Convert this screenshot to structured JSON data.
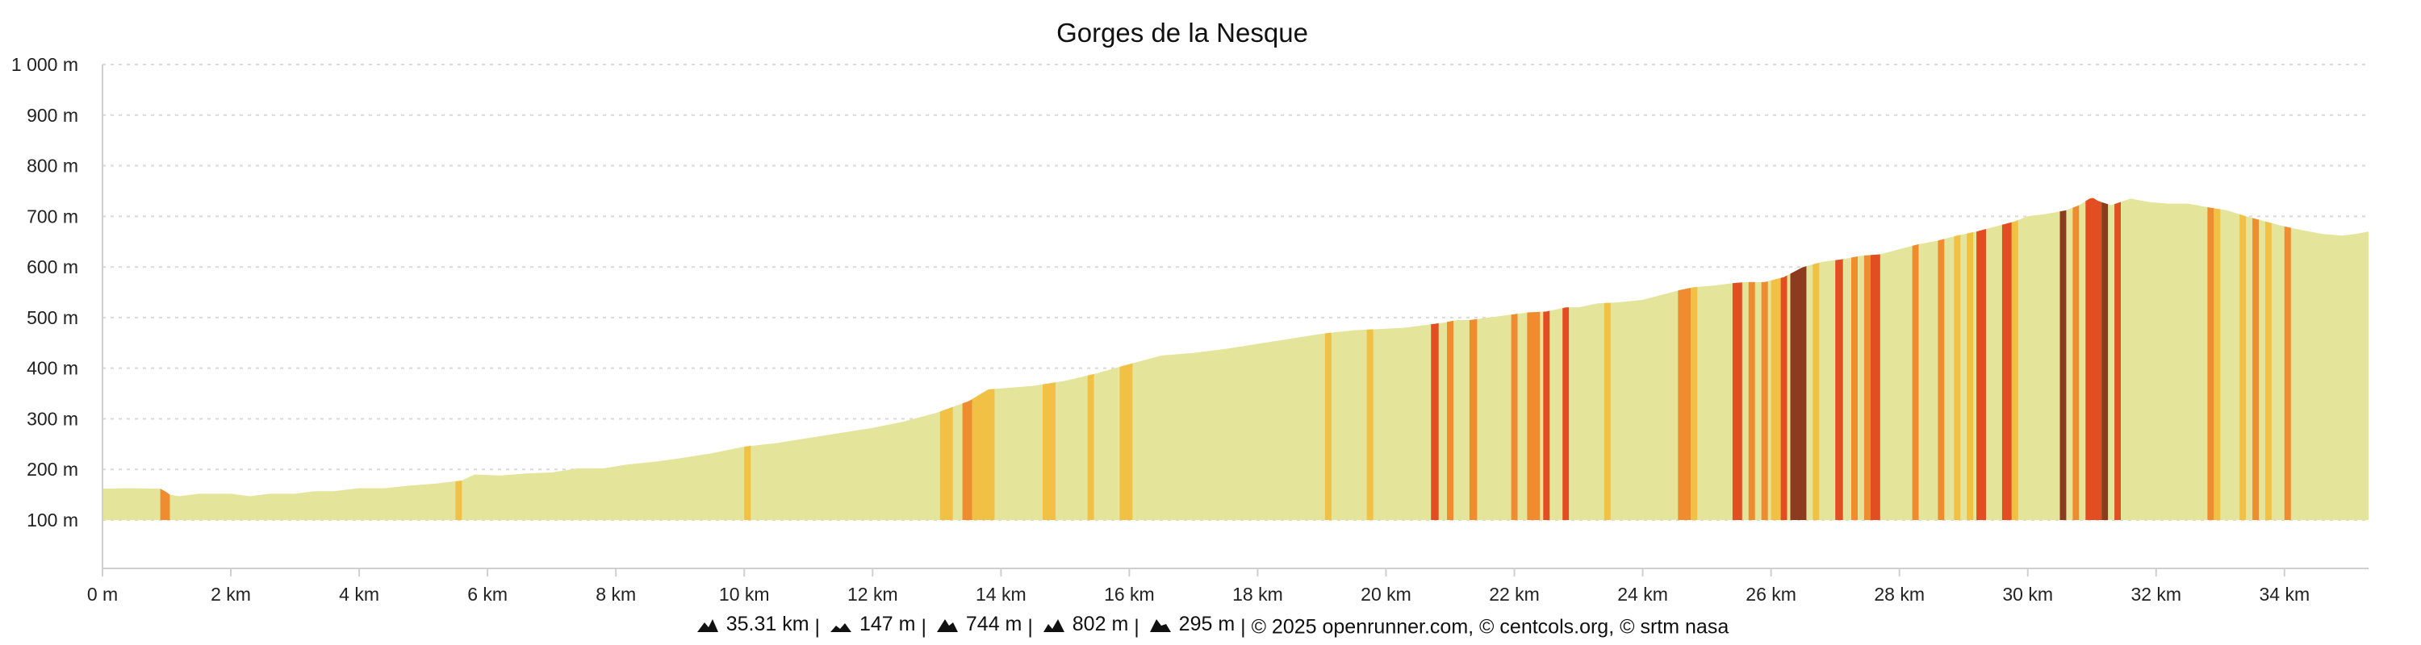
{
  "chart_data": {
    "type": "area",
    "title": "Gorges de la Nesque",
    "xlim": [
      0,
      35.31
    ],
    "ylim": [
      0,
      1000
    ],
    "y_axis_baseline": 100,
    "x_ticks": [
      0,
      2,
      4,
      6,
      8,
      10,
      12,
      14,
      16,
      18,
      20,
      22,
      24,
      26,
      28,
      30,
      32,
      34
    ],
    "x_tick_labels": [
      "0 m",
      "2 km",
      "4 km",
      "6 km",
      "8 km",
      "10 km",
      "12 km",
      "14 km",
      "16 km",
      "18 km",
      "20 km",
      "22 km",
      "24 km",
      "26 km",
      "28 km",
      "30 km",
      "32 km",
      "34 km"
    ],
    "y_ticks": [
      100,
      200,
      300,
      400,
      500,
      600,
      700,
      800,
      900,
      1000
    ],
    "y_tick_labels": [
      "100 m",
      "200 m",
      "300 m",
      "400 m",
      "500 m",
      "600 m",
      "700 m",
      "800 m",
      "900 m",
      "1 000 m"
    ],
    "grid": true,
    "colors": {
      "base": "#e4e49a",
      "grade_low": "#f0c145",
      "grade_mid": "#f08c30",
      "grade_high": "#e24e22",
      "grade_steep": "#8c3b1e"
    },
    "series": [
      {
        "x": [
          0,
          0.4,
          0.9,
          1.0,
          1.05,
          1.2,
          1.5,
          2.0,
          2.3,
          2.6,
          3.0,
          3.3,
          3.6,
          4.0,
          4.4,
          4.8,
          5.2,
          5.6,
          5.8,
          6.2,
          6.6,
          7.0,
          7.4,
          7.8,
          8.2,
          8.6,
          9.0,
          9.5,
          10.0,
          10.5,
          11.0,
          11.5,
          12.0,
          12.5,
          13.0,
          13.5,
          13.8,
          14.0,
          14.5,
          15.0,
          15.5,
          16.0,
          16.5,
          17.0,
          17.5,
          18.0,
          18.5,
          19.0,
          19.5,
          20.0,
          20.3,
          20.6,
          20.9,
          21.1,
          21.3,
          21.6,
          21.9,
          22.2,
          22.5,
          22.8,
          23.0,
          23.3,
          23.6,
          24.0,
          24.3,
          24.6,
          24.8,
          25.1,
          25.4,
          25.6,
          25.9,
          26.2,
          26.5,
          26.8,
          27.1,
          27.4,
          27.7,
          28.0,
          28.3,
          28.6,
          28.9,
          29.2,
          29.5,
          29.8,
          30.0,
          30.3,
          30.6,
          30.8,
          31.0,
          31.1,
          31.3,
          31.6,
          31.9,
          32.2,
          32.5,
          32.8,
          33.1,
          33.4,
          33.7,
          34.0,
          34.3,
          34.6,
          34.9,
          35.1,
          35.31
        ],
        "y": [
          162,
          163,
          162,
          155,
          150,
          147,
          152,
          152,
          147,
          152,
          152,
          157,
          157,
          163,
          163,
          168,
          172,
          178,
          190,
          188,
          192,
          194,
          202,
          202,
          210,
          215,
          222,
          232,
          245,
          252,
          262,
          272,
          282,
          295,
          312,
          335,
          358,
          360,
          365,
          375,
          390,
          408,
          425,
          430,
          438,
          448,
          458,
          468,
          475,
          478,
          480,
          485,
          490,
          495,
          495,
          500,
          505,
          510,
          512,
          520,
          520,
          528,
          530,
          535,
          545,
          555,
          560,
          563,
          568,
          570,
          570,
          580,
          600,
          610,
          615,
          622,
          625,
          635,
          645,
          652,
          662,
          670,
          680,
          690,
          700,
          705,
          712,
          722,
          738,
          730,
          722,
          735,
          728,
          725,
          725,
          718,
          712,
          700,
          690,
          680,
          672,
          665,
          662,
          665,
          670
        ]
      }
    ],
    "grade_bands": [
      {
        "x0": 0.9,
        "x1": 1.05,
        "level": "mid"
      },
      {
        "x0": 5.5,
        "x1": 5.6,
        "level": "low"
      },
      {
        "x0": 10.0,
        "x1": 10.1,
        "level": "low"
      },
      {
        "x0": 13.05,
        "x1": 13.25,
        "level": "low"
      },
      {
        "x0": 13.4,
        "x1": 13.55,
        "level": "mid"
      },
      {
        "x0": 13.55,
        "x1": 13.9,
        "level": "low"
      },
      {
        "x0": 14.65,
        "x1": 14.85,
        "level": "low"
      },
      {
        "x0": 15.35,
        "x1": 15.45,
        "level": "low"
      },
      {
        "x0": 15.85,
        "x1": 16.05,
        "level": "low"
      },
      {
        "x0": 19.05,
        "x1": 19.15,
        "level": "low"
      },
      {
        "x0": 19.7,
        "x1": 19.8,
        "level": "low"
      },
      {
        "x0": 20.7,
        "x1": 20.82,
        "level": "high"
      },
      {
        "x0": 20.95,
        "x1": 21.05,
        "level": "mid"
      },
      {
        "x0": 21.3,
        "x1": 21.42,
        "level": "mid"
      },
      {
        "x0": 21.95,
        "x1": 22.05,
        "level": "mid"
      },
      {
        "x0": 22.2,
        "x1": 22.4,
        "level": "mid"
      },
      {
        "x0": 22.45,
        "x1": 22.55,
        "level": "high"
      },
      {
        "x0": 22.75,
        "x1": 22.85,
        "level": "high"
      },
      {
        "x0": 23.4,
        "x1": 23.5,
        "level": "low"
      },
      {
        "x0": 24.55,
        "x1": 24.75,
        "level": "mid"
      },
      {
        "x0": 24.75,
        "x1": 24.85,
        "level": "low"
      },
      {
        "x0": 25.4,
        "x1": 25.55,
        "level": "high"
      },
      {
        "x0": 25.65,
        "x1": 25.75,
        "level": "mid"
      },
      {
        "x0": 25.85,
        "x1": 25.95,
        "level": "mid"
      },
      {
        "x0": 26.0,
        "x1": 26.15,
        "level": "low"
      },
      {
        "x0": 26.15,
        "x1": 26.25,
        "level": "high"
      },
      {
        "x0": 26.3,
        "x1": 26.55,
        "level": "steep"
      },
      {
        "x0": 26.65,
        "x1": 26.75,
        "level": "low"
      },
      {
        "x0": 27.0,
        "x1": 27.12,
        "level": "high"
      },
      {
        "x0": 27.25,
        "x1": 27.35,
        "level": "mid"
      },
      {
        "x0": 27.45,
        "x1": 27.55,
        "level": "mid"
      },
      {
        "x0": 27.55,
        "x1": 27.7,
        "level": "high"
      },
      {
        "x0": 28.2,
        "x1": 28.3,
        "level": "mid"
      },
      {
        "x0": 28.6,
        "x1": 28.7,
        "level": "mid"
      },
      {
        "x0": 28.85,
        "x1": 28.95,
        "level": "low"
      },
      {
        "x0": 29.05,
        "x1": 29.15,
        "level": "low"
      },
      {
        "x0": 29.2,
        "x1": 29.35,
        "level": "high"
      },
      {
        "x0": 29.6,
        "x1": 29.75,
        "level": "high"
      },
      {
        "x0": 29.75,
        "x1": 29.85,
        "level": "low"
      },
      {
        "x0": 30.5,
        "x1": 30.6,
        "level": "steep"
      },
      {
        "x0": 30.7,
        "x1": 30.8,
        "level": "mid"
      },
      {
        "x0": 30.9,
        "x1": 31.15,
        "level": "high"
      },
      {
        "x0": 31.15,
        "x1": 31.25,
        "level": "steep"
      },
      {
        "x0": 31.35,
        "x1": 31.45,
        "level": "high"
      },
      {
        "x0": 32.8,
        "x1": 32.9,
        "level": "mid"
      },
      {
        "x0": 32.9,
        "x1": 33.0,
        "level": "low"
      },
      {
        "x0": 33.3,
        "x1": 33.4,
        "level": "low"
      },
      {
        "x0": 33.5,
        "x1": 33.6,
        "level": "mid"
      },
      {
        "x0": 33.7,
        "x1": 33.8,
        "level": "low"
      },
      {
        "x0": 34.0,
        "x1": 34.1,
        "level": "mid"
      }
    ]
  },
  "footer": {
    "distance": "35.31 km",
    "min_alt": "147 m",
    "max_alt": "744 m",
    "elev_gain": "802 m",
    "elev_loss": "295 m",
    "credits": "© 2025 openrunner.com, © centcols.org, © srtm nasa",
    "separator": "|",
    "icons": [
      "distance-climb-icon",
      "min-altitude-icon",
      "max-altitude-icon",
      "elevation-gain-icon",
      "elevation-loss-icon"
    ]
  }
}
